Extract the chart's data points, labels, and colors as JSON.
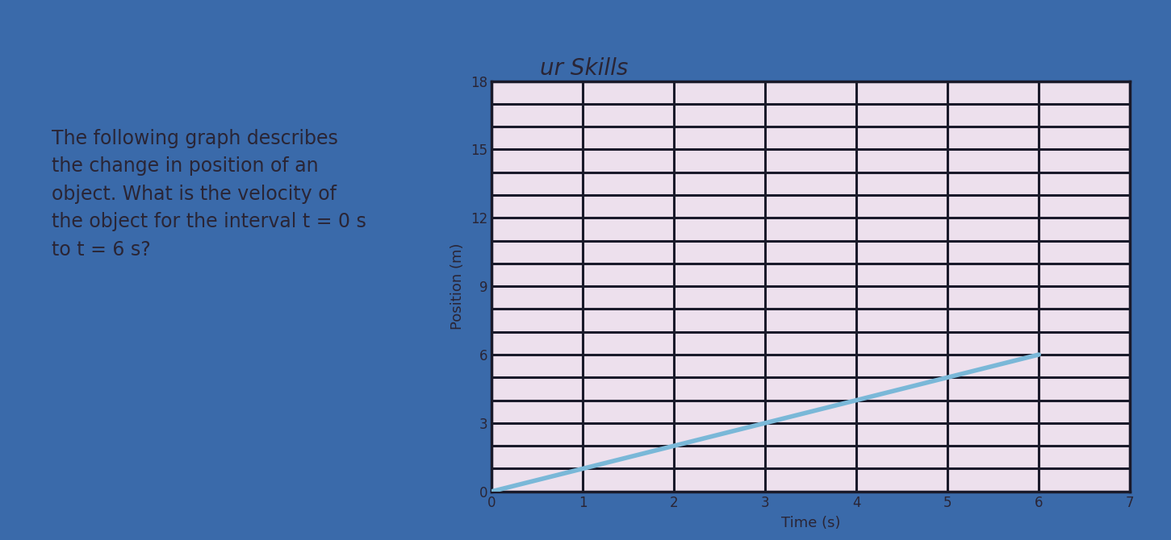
{
  "title": "ur Skills",
  "text_block": "The following graph describes\nthe change in position of an\nobject. What is the velocity of\nthe object for the interval t = 0 s\nto t = 6 s?",
  "xlabel": "Time (s)",
  "ylabel": "Position (m)",
  "xlim": [
    0,
    7
  ],
  "ylim": [
    0,
    18
  ],
  "xticks": [
    0,
    1,
    2,
    3,
    4,
    5,
    6,
    7
  ],
  "yticks": [
    0,
    3,
    6,
    9,
    12,
    15,
    18
  ],
  "grid_color": "#1a1a2a",
  "line_x": [
    0,
    6
  ],
  "line_y": [
    0,
    6
  ],
  "line_color": "#7ab8d8",
  "line_width": 4.0,
  "content_bg": "#e8dce8",
  "outer_bg": "#3a6aaa",
  "plot_bg": "#ede0ed",
  "text_color": "#2a2535",
  "font_size_text": 17,
  "font_size_axis_label": 13,
  "font_size_ticks": 12,
  "grid_linewidth": 2.2,
  "spine_linewidth": 2.5
}
